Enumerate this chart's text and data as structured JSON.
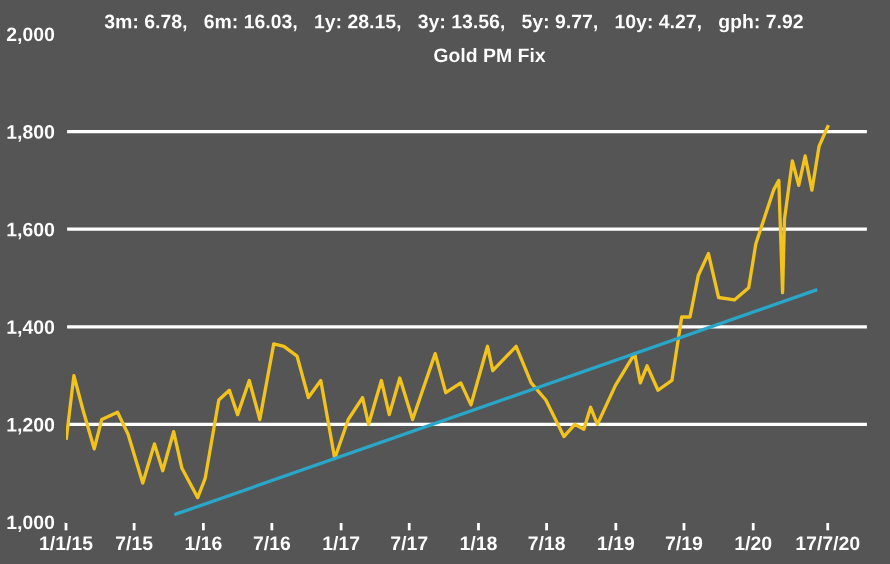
{
  "chart_data": {
    "type": "line",
    "title": "Gold PM Fix",
    "annotations": [
      "3m: 6.78,   6m: 16.03,   1y: 28.15,   3y: 13.56,   5y: 9.77,   10y: 4.27,   gph: 7.92"
    ],
    "series": [
      {
        "color": "#f2c31c",
        "x": [
          "2015-01-02",
          "2015-01-22",
          "2015-02-15",
          "2015-03-17",
          "2015-04-06",
          "2015-05-18",
          "2015-06-15",
          "2015-07-24",
          "2015-08-24",
          "2015-09-15",
          "2015-10-14",
          "2015-11-05",
          "2015-12-17",
          "2016-01-06",
          "2016-02-11",
          "2016-03-10",
          "2016-04-01",
          "2016-05-02",
          "2016-05-30",
          "2016-07-06",
          "2016-08-02",
          "2016-09-06",
          "2016-10-06",
          "2016-11-08",
          "2016-12-15",
          "2017-01-20",
          "2017-02-27",
          "2017-03-15",
          "2017-04-18",
          "2017-05-09",
          "2017-06-06",
          "2017-07-10",
          "2017-09-08",
          "2017-10-06",
          "2017-11-15",
          "2017-12-12",
          "2018-01-25",
          "2018-02-08",
          "2018-04-11",
          "2018-05-21",
          "2018-06-29",
          "2018-08-16",
          "2018-09-14",
          "2018-10-08",
          "2018-10-26",
          "2018-11-13",
          "2018-12-31",
          "2019-02-20",
          "2019-03-07",
          "2019-03-25",
          "2019-04-23",
          "2019-05-30",
          "2019-06-25",
          "2019-07-17",
          "2019-08-08",
          "2019-09-04",
          "2019-10-01",
          "2019-11-12",
          "2019-12-20",
          "2020-01-08",
          "2020-02-24",
          "2020-03-09",
          "2020-03-19",
          "2020-03-24",
          "2020-04-14",
          "2020-05-01",
          "2020-05-18",
          "2020-06-05",
          "2020-06-24",
          "2020-07-17"
        ],
        "values": [
          1172,
          1300,
          1230,
          1150,
          1210,
          1225,
          1180,
          1080,
          1160,
          1105,
          1185,
          1110,
          1050,
          1090,
          1250,
          1270,
          1220,
          1290,
          1210,
          1365,
          1360,
          1340,
          1255,
          1290,
          1130,
          1210,
          1255,
          1200,
          1290,
          1220,
          1295,
          1210,
          1345,
          1265,
          1285,
          1240,
          1360,
          1310,
          1360,
          1285,
          1250,
          1175,
          1200,
          1190,
          1235,
          1200,
          1280,
          1345,
          1285,
          1320,
          1270,
          1290,
          1420,
          1420,
          1505,
          1550,
          1460,
          1455,
          1480,
          1570,
          1680,
          1700,
          1470,
          1620,
          1740,
          1690,
          1750,
          1680,
          1770,
          1810
        ]
      },
      {
        "color": "#2aa6c8",
        "x": [
          "2015-10-20",
          "2020-06-15"
        ],
        "values": [
          1016,
          1475
        ]
      }
    ],
    "xlim": [
      "2015-01-01",
      "2020-11-01"
    ],
    "xticks": [
      {
        "value": "2015-01-01",
        "label": "1/1/15"
      },
      {
        "value": "2015-07-01",
        "label": "7/15"
      },
      {
        "value": "2016-01-01",
        "label": "1/16"
      },
      {
        "value": "2016-07-01",
        "label": "7/16"
      },
      {
        "value": "2017-01-01",
        "label": "1/17"
      },
      {
        "value": "2017-07-01",
        "label": "7/17"
      },
      {
        "value": "2018-01-01",
        "label": "1/18"
      },
      {
        "value": "2018-07-01",
        "label": "7/18"
      },
      {
        "value": "2019-01-01",
        "label": "1/19"
      },
      {
        "value": "2019-07-01",
        "label": "7/19"
      },
      {
        "value": "2020-01-01",
        "label": "1/20"
      },
      {
        "value": "2020-07-17",
        "label": "17/7/20"
      }
    ],
    "ylim": [
      1000,
      2000
    ],
    "yticks": [
      {
        "value": 1000,
        "label": "1,000"
      },
      {
        "value": 1200,
        "label": "1,200"
      },
      {
        "value": 1400,
        "label": "1,400"
      },
      {
        "value": 1600,
        "label": "1,600"
      },
      {
        "value": 1800,
        "label": "1,800"
      },
      {
        "value": 2000,
        "label": "2,000"
      }
    ],
    "grid": "y"
  }
}
